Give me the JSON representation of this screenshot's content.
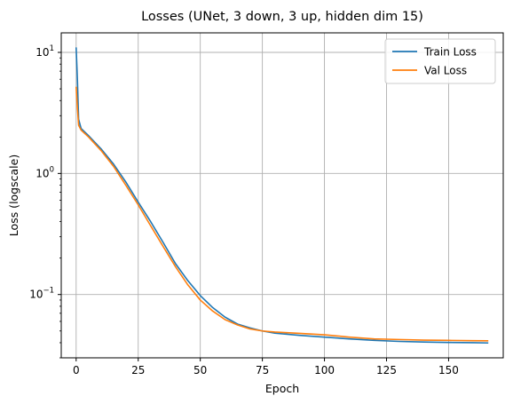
{
  "chart_data": {
    "type": "line",
    "title": "Losses (UNet, 3 down, 3 up, hidden dim 15)",
    "xlabel": "Epoch",
    "ylabel": "Loss (logscale)",
    "yscale": "log",
    "xlim": [
      -6,
      172
    ],
    "ylim": [
      0.03,
      14.5
    ],
    "xticks": [
      0,
      25,
      50,
      75,
      100,
      125,
      150
    ],
    "yticks": [
      {
        "value": 10,
        "base": "10",
        "exp": "1"
      },
      {
        "value": 1,
        "base": "10",
        "exp": "0"
      },
      {
        "value": 0.1,
        "base": "10",
        "exp": "−1"
      }
    ],
    "grid": true,
    "legend": "top-right",
    "series": [
      {
        "name": "Train Loss",
        "color": "#1f77b4",
        "points": [
          [
            0,
            11.0
          ],
          [
            0.5,
            6.0
          ],
          [
            1,
            2.8
          ],
          [
            2,
            2.35
          ],
          [
            5,
            2.05
          ],
          [
            10,
            1.6
          ],
          [
            15,
            1.2
          ],
          [
            20,
            0.85
          ],
          [
            25,
            0.58
          ],
          [
            30,
            0.4
          ],
          [
            35,
            0.27
          ],
          [
            40,
            0.18
          ],
          [
            45,
            0.13
          ],
          [
            50,
            0.098
          ],
          [
            55,
            0.078
          ],
          [
            60,
            0.065
          ],
          [
            65,
            0.057
          ],
          [
            70,
            0.053
          ],
          [
            75,
            0.05
          ],
          [
            80,
            0.048
          ],
          [
            90,
            0.046
          ],
          [
            100,
            0.0445
          ],
          [
            110,
            0.043
          ],
          [
            120,
            0.0418
          ],
          [
            130,
            0.041
          ],
          [
            140,
            0.0405
          ],
          [
            150,
            0.0402
          ],
          [
            160,
            0.04
          ],
          [
            166,
            0.0398
          ]
        ]
      },
      {
        "name": "Val Loss",
        "color": "#ff7f0e",
        "points": [
          [
            0,
            5.2
          ],
          [
            0.5,
            3.5
          ],
          [
            1,
            2.5
          ],
          [
            2,
            2.28
          ],
          [
            5,
            2.0
          ],
          [
            10,
            1.55
          ],
          [
            15,
            1.15
          ],
          [
            20,
            0.8
          ],
          [
            25,
            0.55
          ],
          [
            30,
            0.37
          ],
          [
            35,
            0.25
          ],
          [
            40,
            0.17
          ],
          [
            45,
            0.12
          ],
          [
            50,
            0.09
          ],
          [
            55,
            0.073
          ],
          [
            60,
            0.062
          ],
          [
            65,
            0.056
          ],
          [
            70,
            0.052
          ],
          [
            75,
            0.05
          ],
          [
            80,
            0.049
          ],
          [
            90,
            0.0478
          ],
          [
            100,
            0.0465
          ],
          [
            110,
            0.0445
          ],
          [
            120,
            0.043
          ],
          [
            130,
            0.0425
          ],
          [
            140,
            0.042
          ],
          [
            150,
            0.0418
          ],
          [
            160,
            0.0416
          ],
          [
            166,
            0.0415
          ]
        ]
      }
    ]
  }
}
